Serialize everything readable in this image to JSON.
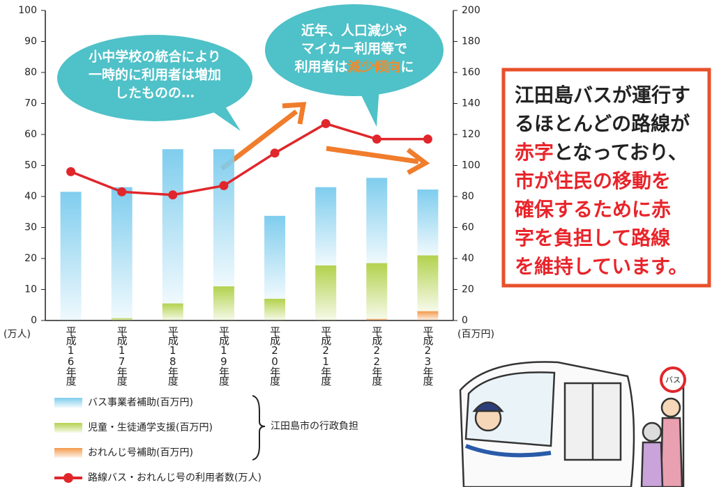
{
  "chart_data": {
    "type": "bar-line",
    "categories": [
      "平成16年度",
      "平成17年度",
      "平成18年度",
      "平成19年度",
      "平成20年度",
      "平成21年度",
      "平成22年度",
      "平成23年度"
    ],
    "series": [
      {
        "name": "バス事業者補助(百万円)",
        "type": "bar",
        "axis": "y2",
        "color": "#7fcdee",
        "values": [
          83,
          84.5,
          99.5,
          88.5,
          53.5,
          50.5,
          55,
          42.5
        ]
      },
      {
        "name": "児童・生徒通学支援(百万円)",
        "type": "bar",
        "axis": "y2",
        "color": "#b3d24e",
        "values": [
          0,
          1.5,
          11,
          22,
          14,
          35.5,
          36,
          36
        ]
      },
      {
        "name": "おれんじ号補助(百万円)",
        "type": "bar",
        "axis": "y2",
        "color": "#f39a4c",
        "values": [
          0,
          0,
          0,
          0,
          0,
          0,
          1,
          6
        ]
      },
      {
        "name": "路線バス・おれんじ号の利用者数(万人)",
        "type": "line",
        "axis": "y",
        "color": "#e0262b",
        "values": [
          48,
          41.5,
          40.5,
          43.5,
          54,
          63.5,
          58.5,
          58.5
        ]
      }
    ],
    "ylim": [
      0,
      100
    ],
    "yticks": [
      0,
      10,
      20,
      30,
      40,
      50,
      60,
      70,
      80,
      90,
      100
    ],
    "y2lim": [
      0,
      200
    ],
    "y2ticks": [
      0,
      20,
      40,
      60,
      80,
      100,
      120,
      140,
      160,
      180,
      200
    ],
    "ylabel": "(万人)",
    "y2label": "(百万円)",
    "bracket_label": "江田島市の行政負担",
    "callouts": [
      {
        "lines": [
          "小中学校の統合により",
          "一時的に利用者は増加",
          "したものの…"
        ]
      },
      {
        "lines": [
          [
            {
              "text": "近年、人口減少や"
            }
          ],
          [
            {
              "text": "マイカー利用等で"
            }
          ],
          [
            {
              "text": "利用者は"
            },
            {
              "text": "減少傾向",
              "color": "#f08a2c"
            },
            {
              "text": "に"
            }
          ]
        ]
      }
    ]
  },
  "notice": {
    "lines": [
      [
        {
          "text": "江田島バスが運行す",
          "color": "#222222"
        }
      ],
      [
        {
          "text": "るほとんどの路線が",
          "color": "#222222"
        }
      ],
      [
        {
          "text": "赤字",
          "color": "#e8242a"
        },
        {
          "text": "となっており、",
          "color": "#222222"
        }
      ],
      [
        {
          "text": "市が住民の移動を",
          "color": "#e8242a"
        }
      ],
      [
        {
          "text": "確保するために赤",
          "color": "#e8242a"
        }
      ],
      [
        {
          "text": "字を負担して路線",
          "color": "#e8242a"
        }
      ],
      [
        {
          "text": "を維持しています。",
          "color": "#e8242a"
        }
      ]
    ]
  },
  "illustration": {
    "sign": "バス"
  }
}
